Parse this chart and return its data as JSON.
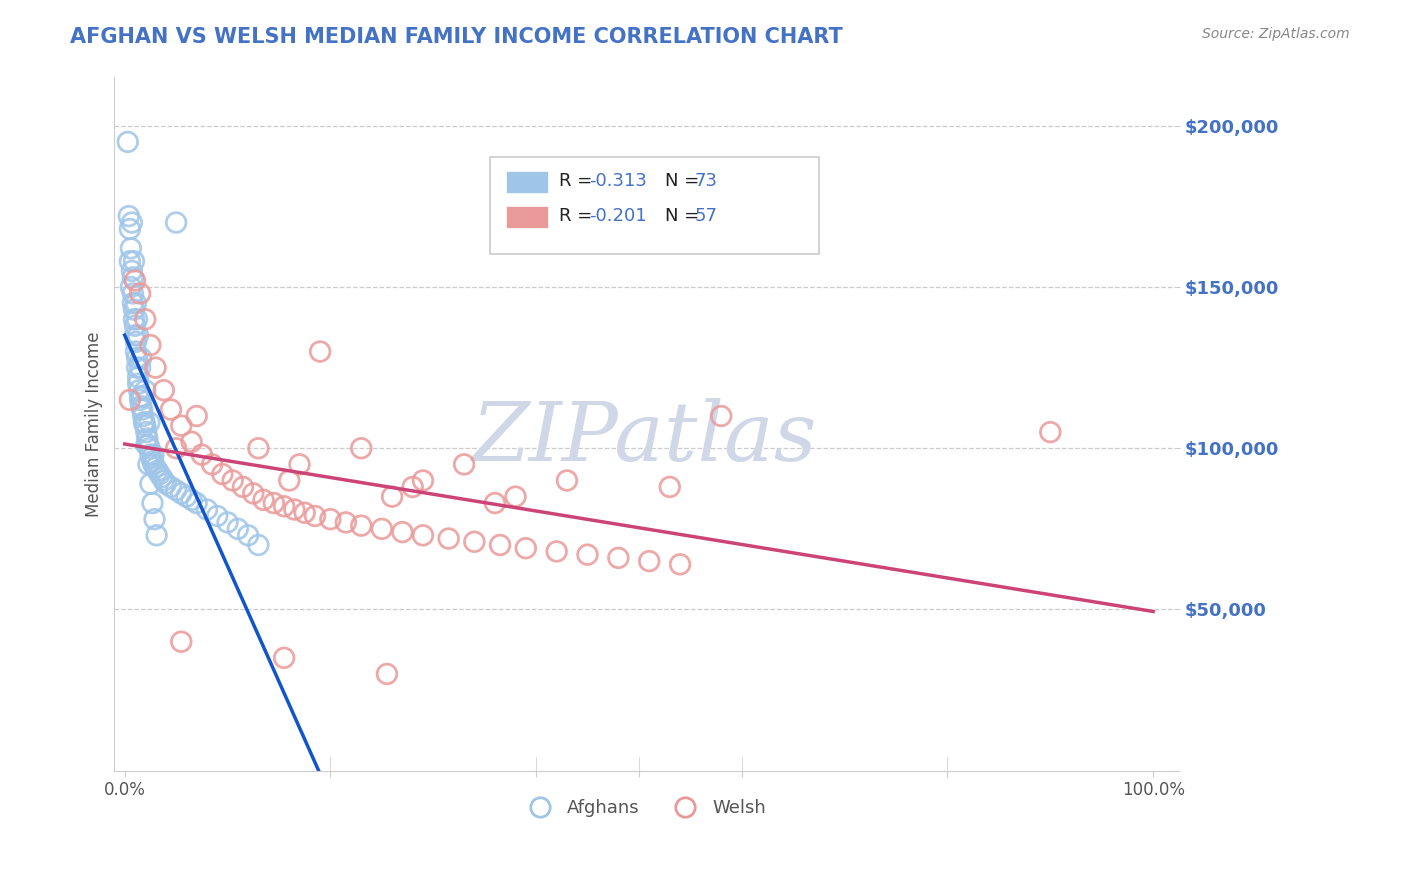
{
  "title": "AFGHAN VS WELSH MEDIAN FAMILY INCOME CORRELATION CHART",
  "title_color": "#4472c4",
  "source_text": "Source: ZipAtlas.com",
  "ylabel": "Median Family Income",
  "ytick_labels": [
    "",
    "$50,000",
    "$100,000",
    "$150,000",
    "$200,000"
  ],
  "ytick_vals": [
    0,
    50000,
    100000,
    150000,
    200000
  ],
  "xtick_labels": [
    "0.0%",
    "",
    "",
    "",
    "",
    "100.0%"
  ],
  "legend_r1": "R = -0.313",
  "legend_n1": "N = 73",
  "legend_r2": "R = -0.201",
  "legend_n2": "N = 57",
  "afghan_color": "#9fc5e8",
  "welsh_color": "#ea9999",
  "afghan_line_color": "#1155cc",
  "welsh_line_color": "#cc4477",
  "dashed_line_color": "#aaaacc",
  "grid_color": "#cccccc",
  "watermark_color": "#d0d8e8",
  "background_color": "#ffffff",
  "afghan_x": [
    0.003,
    0.004,
    0.005,
    0.005,
    0.006,
    0.006,
    0.007,
    0.008,
    0.008,
    0.009,
    0.009,
    0.01,
    0.01,
    0.011,
    0.011,
    0.012,
    0.012,
    0.013,
    0.013,
    0.014,
    0.015,
    0.015,
    0.016,
    0.017,
    0.018,
    0.019,
    0.02,
    0.021,
    0.022,
    0.023,
    0.024,
    0.025,
    0.026,
    0.027,
    0.028,
    0.03,
    0.032,
    0.034,
    0.036,
    0.038,
    0.04,
    0.045,
    0.05,
    0.055,
    0.06,
    0.065,
    0.07,
    0.08,
    0.09,
    0.1,
    0.11,
    0.12,
    0.13,
    0.007,
    0.009,
    0.011,
    0.013,
    0.015,
    0.017,
    0.019,
    0.021,
    0.023,
    0.025,
    0.027,
    0.029,
    0.031,
    0.008,
    0.012,
    0.016,
    0.02,
    0.024,
    0.028,
    0.05
  ],
  "afghan_y": [
    195000,
    172000,
    168000,
    158000,
    162000,
    150000,
    155000,
    148000,
    145000,
    143000,
    140000,
    138000,
    135000,
    133000,
    130000,
    128000,
    125000,
    122000,
    120000,
    118000,
    116000,
    115000,
    113000,
    112000,
    110000,
    108000,
    107000,
    105000,
    103000,
    101000,
    100000,
    98000,
    97000,
    96000,
    95000,
    94000,
    93000,
    92000,
    91000,
    90000,
    89000,
    88000,
    87000,
    86000,
    85000,
    84000,
    83000,
    81000,
    79000,
    77000,
    75000,
    73000,
    70000,
    170000,
    158000,
    145000,
    135000,
    125000,
    116000,
    108000,
    101000,
    95000,
    89000,
    83000,
    78000,
    73000,
    153000,
    140000,
    128000,
    118000,
    108000,
    98000,
    170000
  ],
  "welsh_x": [
    0.005,
    0.01,
    0.015,
    0.02,
    0.025,
    0.03,
    0.038,
    0.045,
    0.055,
    0.065,
    0.075,
    0.085,
    0.095,
    0.105,
    0.115,
    0.125,
    0.135,
    0.145,
    0.155,
    0.165,
    0.175,
    0.185,
    0.2,
    0.215,
    0.23,
    0.25,
    0.27,
    0.29,
    0.315,
    0.34,
    0.365,
    0.39,
    0.42,
    0.45,
    0.48,
    0.51,
    0.54,
    0.05,
    0.13,
    0.23,
    0.33,
    0.43,
    0.53,
    0.07,
    0.17,
    0.28,
    0.38,
    0.16,
    0.26,
    0.36,
    0.055,
    0.155,
    0.255,
    0.58,
    0.9,
    0.19,
    0.29
  ],
  "welsh_y": [
    115000,
    152000,
    148000,
    140000,
    132000,
    125000,
    118000,
    112000,
    107000,
    102000,
    98000,
    95000,
    92000,
    90000,
    88000,
    86000,
    84000,
    83000,
    82000,
    81000,
    80000,
    79000,
    78000,
    77000,
    76000,
    75000,
    74000,
    73000,
    72000,
    71000,
    70000,
    69000,
    68000,
    67000,
    66000,
    65000,
    64000,
    100000,
    100000,
    100000,
    95000,
    90000,
    88000,
    110000,
    95000,
    88000,
    85000,
    90000,
    85000,
    83000,
    40000,
    35000,
    30000,
    110000,
    105000,
    130000,
    90000
  ],
  "ylim": [
    0,
    215000
  ],
  "xlim": [
    -0.01,
    1.02
  ]
}
